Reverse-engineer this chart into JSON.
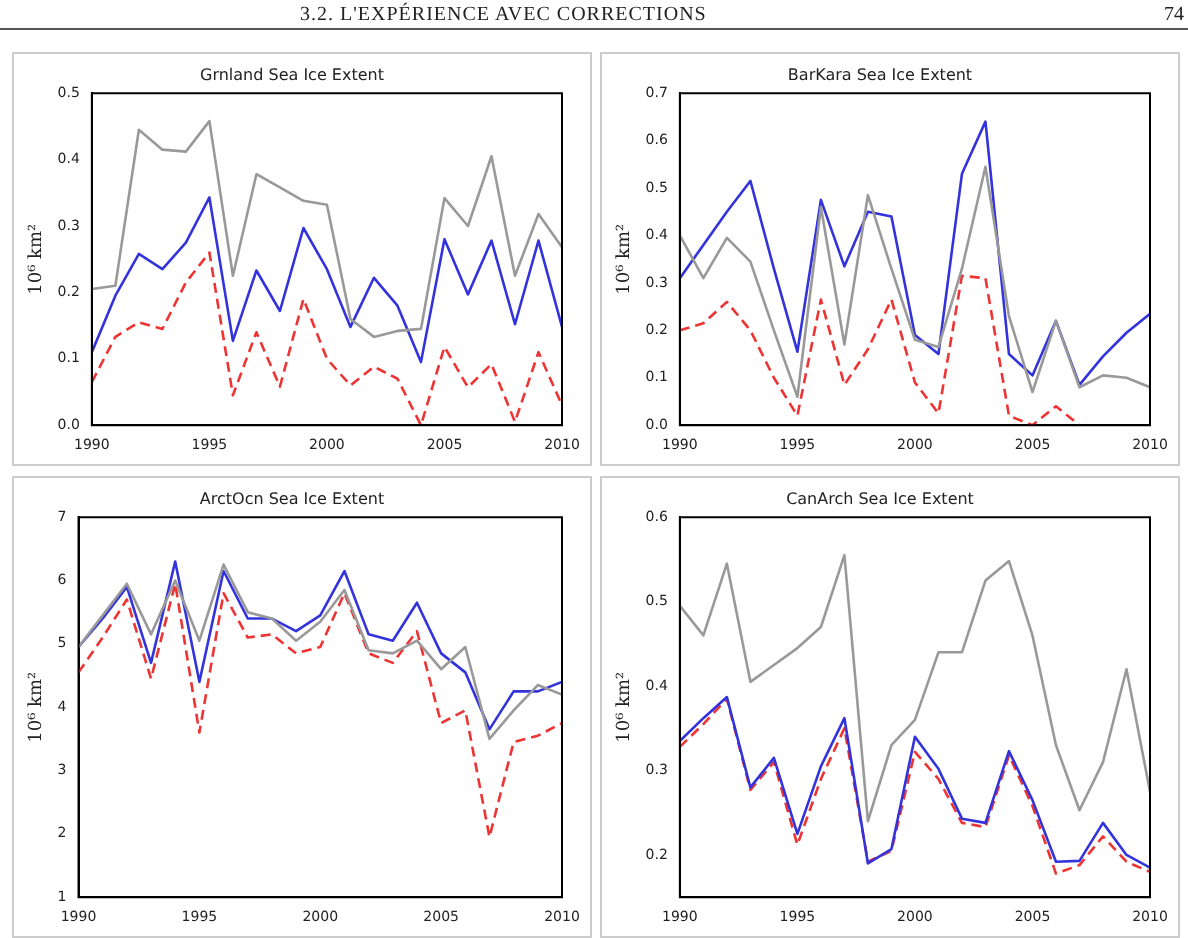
{
  "chart_data": [
    {
      "type": "line",
      "title": "Grnland Sea Ice Extent",
      "ylabel": "10⁶ km²",
      "annotations": [
        "3.2.  L'EXPÉRIENCE AVEC CORRECTIONS",
        "74"
      ],
      "x": [
        1990,
        1991,
        1992,
        1993,
        1994,
        1995,
        1996,
        1997,
        1998,
        1999,
        2000,
        2001,
        2002,
        2003,
        2004,
        2005,
        2006,
        2007,
        2008,
        2009,
        2010
      ],
      "xlim": [
        1990,
        2010
      ],
      "xticks": [
        1990,
        1995,
        2000,
        2005,
        2010
      ],
      "ylim": [
        0,
        0.5
      ],
      "yticks": [
        {
          "value": 0,
          "label": "0.0"
        },
        0.1,
        0.2,
        0.3,
        0.4,
        0.5
      ],
      "grid": false,
      "marker": "none",
      "series": [
        {
          "color": "#999999",
          "line_style": "solid",
          "values": [
            0.205,
            0.21,
            0.445,
            0.415,
            0.412,
            0.458,
            0.225,
            0.378,
            0.358,
            0.338,
            0.332,
            0.16,
            0.133,
            0.142,
            0.145,
            0.342,
            0.3,
            0.405,
            0.225,
            0.318,
            0.268
          ]
        },
        {
          "color": "#3333dd",
          "line_style": "solid",
          "values": [
            0.11,
            0.195,
            0.258,
            0.235,
            0.275,
            0.343,
            0.127,
            0.233,
            0.172,
            0.297,
            0.235,
            0.148,
            0.222,
            0.18,
            0.095,
            0.28,
            0.197,
            0.278,
            0.152,
            0.278,
            0.148
          ]
        },
        {
          "color": "#ee3333",
          "line_style": "dashed",
          "values": [
            0.065,
            0.133,
            0.155,
            0.145,
            0.215,
            0.26,
            0.045,
            0.14,
            0.058,
            0.19,
            0.1,
            0.06,
            0.088,
            0.07,
            0.0,
            0.118,
            0.057,
            0.092,
            0.005,
            0.11,
            0.03
          ]
        }
      ]
    },
    {
      "type": "line",
      "title": "BarKara Sea Ice Extent",
      "ylabel": "10⁶ km²",
      "x": [
        1990,
        1991,
        1992,
        1993,
        1994,
        1995,
        1996,
        1997,
        1998,
        1999,
        2000,
        2001,
        2002,
        2003,
        2004,
        2005,
        2006,
        2007,
        2008,
        2009,
        2010
      ],
      "xlim": [
        1990,
        2010
      ],
      "xticks": [
        1990,
        1995,
        2000,
        2005,
        2010
      ],
      "ylim": [
        0,
        0.7
      ],
      "yticks": [
        {
          "value": 0,
          "label": "0.0"
        },
        0.1,
        0.2,
        0.3,
        0.4,
        0.5,
        0.6,
        0.7
      ],
      "grid": false,
      "marker": "none",
      "series": [
        {
          "color": "#999999",
          "line_style": "solid",
          "values": [
            0.4,
            0.31,
            0.395,
            0.345,
            0.2,
            0.06,
            0.46,
            0.17,
            0.485,
            0.33,
            0.18,
            0.165,
            0.33,
            0.545,
            0.23,
            0.07,
            0.22,
            0.08,
            0.105,
            0.1,
            0.08
          ]
        },
        {
          "color": "#3333dd",
          "line_style": "solid",
          "values": [
            0.31,
            0.38,
            0.45,
            0.515,
            0.33,
            0.155,
            0.475,
            0.335,
            0.45,
            0.44,
            0.19,
            0.15,
            0.53,
            0.64,
            0.15,
            0.105,
            0.22,
            0.085,
            0.145,
            0.195,
            0.235
          ]
        },
        {
          "color": "#ee3333",
          "line_style": "dashed",
          "values": [
            0.2,
            0.215,
            0.26,
            0.2,
            0.1,
            0.02,
            0.265,
            0.085,
            0.16,
            0.265,
            0.09,
            0.025,
            0.315,
            0.31,
            0.02,
            0.0,
            0.04,
            0.0,
            null,
            null,
            null
          ]
        }
      ]
    },
    {
      "type": "line",
      "title": "ArctOcn Sea Ice Extent",
      "ylabel": "10⁶ km²",
      "x": [
        1990,
        1991,
        1992,
        1993,
        1994,
        1995,
        1996,
        1997,
        1998,
        1999,
        2000,
        2001,
        2002,
        2003,
        2004,
        2005,
        2006,
        2007,
        2008,
        2009,
        2010
      ],
      "xlim": [
        1990,
        2010
      ],
      "xticks": [
        1990,
        1995,
        2000,
        2005,
        2010
      ],
      "ylim": [
        1,
        7
      ],
      "yticks": [
        1,
        2,
        3,
        4,
        5,
        6,
        7
      ],
      "grid": false,
      "marker": "none",
      "series": [
        {
          "color": "#999999",
          "line_style": "solid",
          "values": [
            4.95,
            5.45,
            5.95,
            5.15,
            6.0,
            5.05,
            6.25,
            5.5,
            5.4,
            5.05,
            5.35,
            5.85,
            4.9,
            4.85,
            5.05,
            4.6,
            4.95,
            3.5,
            3.95,
            4.35,
            4.2
          ]
        },
        {
          "color": "#3333dd",
          "line_style": "solid",
          "values": [
            4.95,
            5.4,
            5.9,
            4.7,
            6.3,
            4.4,
            6.15,
            5.4,
            5.4,
            5.2,
            5.45,
            6.15,
            5.15,
            5.05,
            5.65,
            4.85,
            4.55,
            3.65,
            4.25,
            4.25,
            4.4
          ]
        },
        {
          "color": "#ee3333",
          "line_style": "dashed",
          "values": [
            4.55,
            5.1,
            5.7,
            4.45,
            5.95,
            3.6,
            5.8,
            5.1,
            5.15,
            4.85,
            4.95,
            5.8,
            4.85,
            4.7,
            5.2,
            3.75,
            3.95,
            1.95,
            3.45,
            3.55,
            3.75
          ]
        }
      ]
    },
    {
      "type": "line",
      "title": "CanArch Sea Ice Extent",
      "ylabel": "10⁶ km²",
      "x": [
        1990,
        1991,
        1992,
        1993,
        1994,
        1995,
        1996,
        1997,
        1998,
        1999,
        2000,
        2001,
        2002,
        2003,
        2004,
        2005,
        2006,
        2007,
        2008,
        2009,
        2010
      ],
      "xlim": [
        1990,
        2010
      ],
      "xticks": [
        1990,
        1995,
        2000,
        2005,
        2010
      ],
      "ylim": [
        0.15,
        0.6
      ],
      "yticks": [
        0.2,
        0.3,
        0.4,
        0.5,
        0.6
      ],
      "grid": false,
      "marker": "none",
      "series": [
        {
          "color": "#999999",
          "line_style": "solid",
          "values": [
            0.495,
            0.46,
            0.545,
            0.405,
            0.425,
            0.445,
            0.47,
            0.555,
            0.24,
            0.33,
            0.36,
            0.44,
            0.44,
            0.525,
            0.548,
            0.46,
            0.33,
            0.253,
            0.31,
            0.42,
            0.275
          ]
        },
        {
          "color": "#3333dd",
          "line_style": "solid",
          "values": [
            0.335,
            0.362,
            0.387,
            0.28,
            0.315,
            0.225,
            0.305,
            0.362,
            0.19,
            0.207,
            0.34,
            0.302,
            0.243,
            0.238,
            0.323,
            0.265,
            0.192,
            0.193,
            0.238,
            0.2,
            0.185
          ]
        },
        {
          "color": "#ee3333",
          "line_style": "dashed",
          "values": [
            0.328,
            0.355,
            0.385,
            0.277,
            0.31,
            0.212,
            0.29,
            0.35,
            0.192,
            0.205,
            0.322,
            0.29,
            0.238,
            0.233,
            0.318,
            0.258,
            0.178,
            0.188,
            0.222,
            0.192,
            0.18
          ]
        }
      ]
    }
  ]
}
